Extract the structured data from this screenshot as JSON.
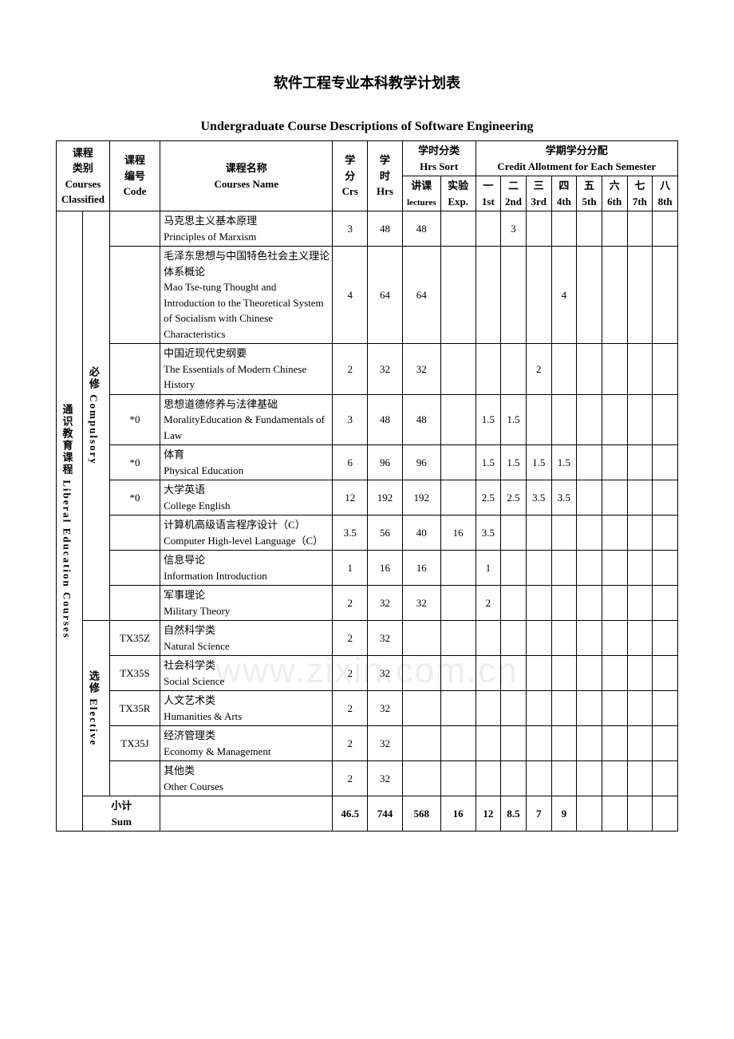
{
  "title_cn": "软件工程专业本科教学计划表",
  "title_en": "Undergraduate Course Descriptions of Software Engineering",
  "headers": {
    "courses_classified_cn": "课程\n类别",
    "courses_classified_en": "Courses Classified",
    "code_cn": "课程\n编号",
    "code_en": "Code",
    "name_cn": "课程名称",
    "name_en": "Courses Name",
    "crs_cn": "学\n分",
    "crs_en": "Crs",
    "hrs_cn": "学\n时",
    "hrs_en": "Hrs",
    "hrs_sort_cn": "学时分类",
    "hrs_sort_en": "Hrs Sort",
    "lectures_cn": "讲课",
    "lectures_en": "lectures",
    "exp_cn": "实验",
    "exp_en": "Exp.",
    "allot_cn": "学期学分分配",
    "allot_en": "Credit Allotment for Each Semester",
    "sems_cn": [
      "一",
      "二",
      "三",
      "四",
      "五",
      "六",
      "七",
      "八"
    ],
    "sems_en": [
      "1st",
      "2nd",
      "3rd",
      "4th",
      "5th",
      "6th",
      "7th",
      "8th"
    ]
  },
  "category_vertical": "通识教育课程 Liberal  Education Courses",
  "sub_compulsory": "必修 Compulsory",
  "sub_elective": "选修 Elective",
  "sum_cn": "小计",
  "sum_en": "Sum",
  "rows": [
    {
      "code": "",
      "name_cn": "马克思主义基本原理",
      "name_en": "Principles of Marxism",
      "crs": "3",
      "hrs": "48",
      "lec": "48",
      "exp": "",
      "s": [
        "",
        "3",
        "",
        "",
        "",
        "",
        "",
        ""
      ]
    },
    {
      "code": "",
      "name_cn": "毛泽东思想与中国特色社会主义理论体系概论",
      "name_en": "Mao Tse-tung Thought and Introduction to the Theoretical System of Socialism with Chinese Characteristics",
      "crs": "4",
      "hrs": "64",
      "lec": "64",
      "exp": "",
      "s": [
        "",
        "",
        "",
        "4",
        "",
        "",
        "",
        ""
      ]
    },
    {
      "code": "",
      "name_cn": "中国近现代史纲要",
      "name_en": "The Essentials of Modern Chinese History",
      "crs": "2",
      "hrs": "32",
      "lec": "32",
      "exp": "",
      "s": [
        "",
        "",
        "2",
        "",
        "",
        "",
        "",
        ""
      ]
    },
    {
      "code": "*0",
      "name_cn": "思想道德修养与法律基础",
      "name_en": "MoralityEducation & Fundamentals of Law",
      "crs": "3",
      "hrs": "48",
      "lec": "48",
      "exp": "",
      "s": [
        "1.5",
        "1.5",
        "",
        "",
        "",
        "",
        "",
        ""
      ]
    },
    {
      "code": "*0",
      "name_cn": "体育",
      "name_en": "Physical Education",
      "crs": "6",
      "hrs": "96",
      "lec": "96",
      "exp": "",
      "s": [
        "1.5",
        "1.5",
        "1.5",
        "1.5",
        "",
        "",
        "",
        ""
      ]
    },
    {
      "code": "*0",
      "name_cn": "大学英语",
      "name_en": "College English",
      "crs": "12",
      "hrs": "192",
      "lec": "192",
      "exp": "",
      "s": [
        "2.5",
        "2.5",
        "3.5",
        "3.5",
        "",
        "",
        "",
        ""
      ]
    },
    {
      "code": "",
      "name_cn": "计算机高级语言程序设计（C）",
      "name_en": " Computer High-level Language（C）",
      "crs": "3.5",
      "hrs": "56",
      "lec": "40",
      "exp": "16",
      "s": [
        "3.5",
        "",
        "",
        "",
        "",
        "",
        "",
        ""
      ]
    },
    {
      "code": "",
      "name_cn": "信息导论",
      "name_en": "Information Introduction",
      "crs": "1",
      "hrs": "16",
      "lec": "16",
      "exp": "",
      "s": [
        "1",
        "",
        "",
        "",
        "",
        "",
        "",
        ""
      ]
    },
    {
      "code": "",
      "name_cn": "军事理论",
      "name_en": "Military Theory",
      "crs": "2",
      "hrs": "32",
      "lec": "32",
      "exp": "",
      "s": [
        "2",
        "",
        "",
        "",
        "",
        "",
        "",
        ""
      ]
    }
  ],
  "elective_rows": [
    {
      "code": "TX35Z",
      "name_cn": "自然科学类",
      "name_en": "Natural Science",
      "crs": "2",
      "hrs": "32"
    },
    {
      "code": "TX35S",
      "name_cn": "社会科学类",
      "name_en": "Social Science",
      "crs": "2",
      "hrs": "32"
    },
    {
      "code": "TX35R",
      "name_cn": "人文艺术类",
      "name_en": "Humanities & Arts",
      "crs": "2",
      "hrs": "32"
    },
    {
      "code": "TX35J",
      "name_cn": "经济管理类",
      "name_en": "Economy & Management",
      "crs": "2",
      "hrs": "32"
    },
    {
      "code": "",
      "name_cn": "其他类",
      "name_en": "Other Courses",
      "crs": "2",
      "hrs": "32"
    }
  ],
  "sum_row": {
    "crs": "46.5",
    "hrs": "744",
    "lec": "568",
    "exp": "16",
    "s": [
      "12",
      "8.5",
      "7",
      "9",
      "",
      "",
      "",
      ""
    ]
  },
  "watermark": "www.zixin.com.cn"
}
